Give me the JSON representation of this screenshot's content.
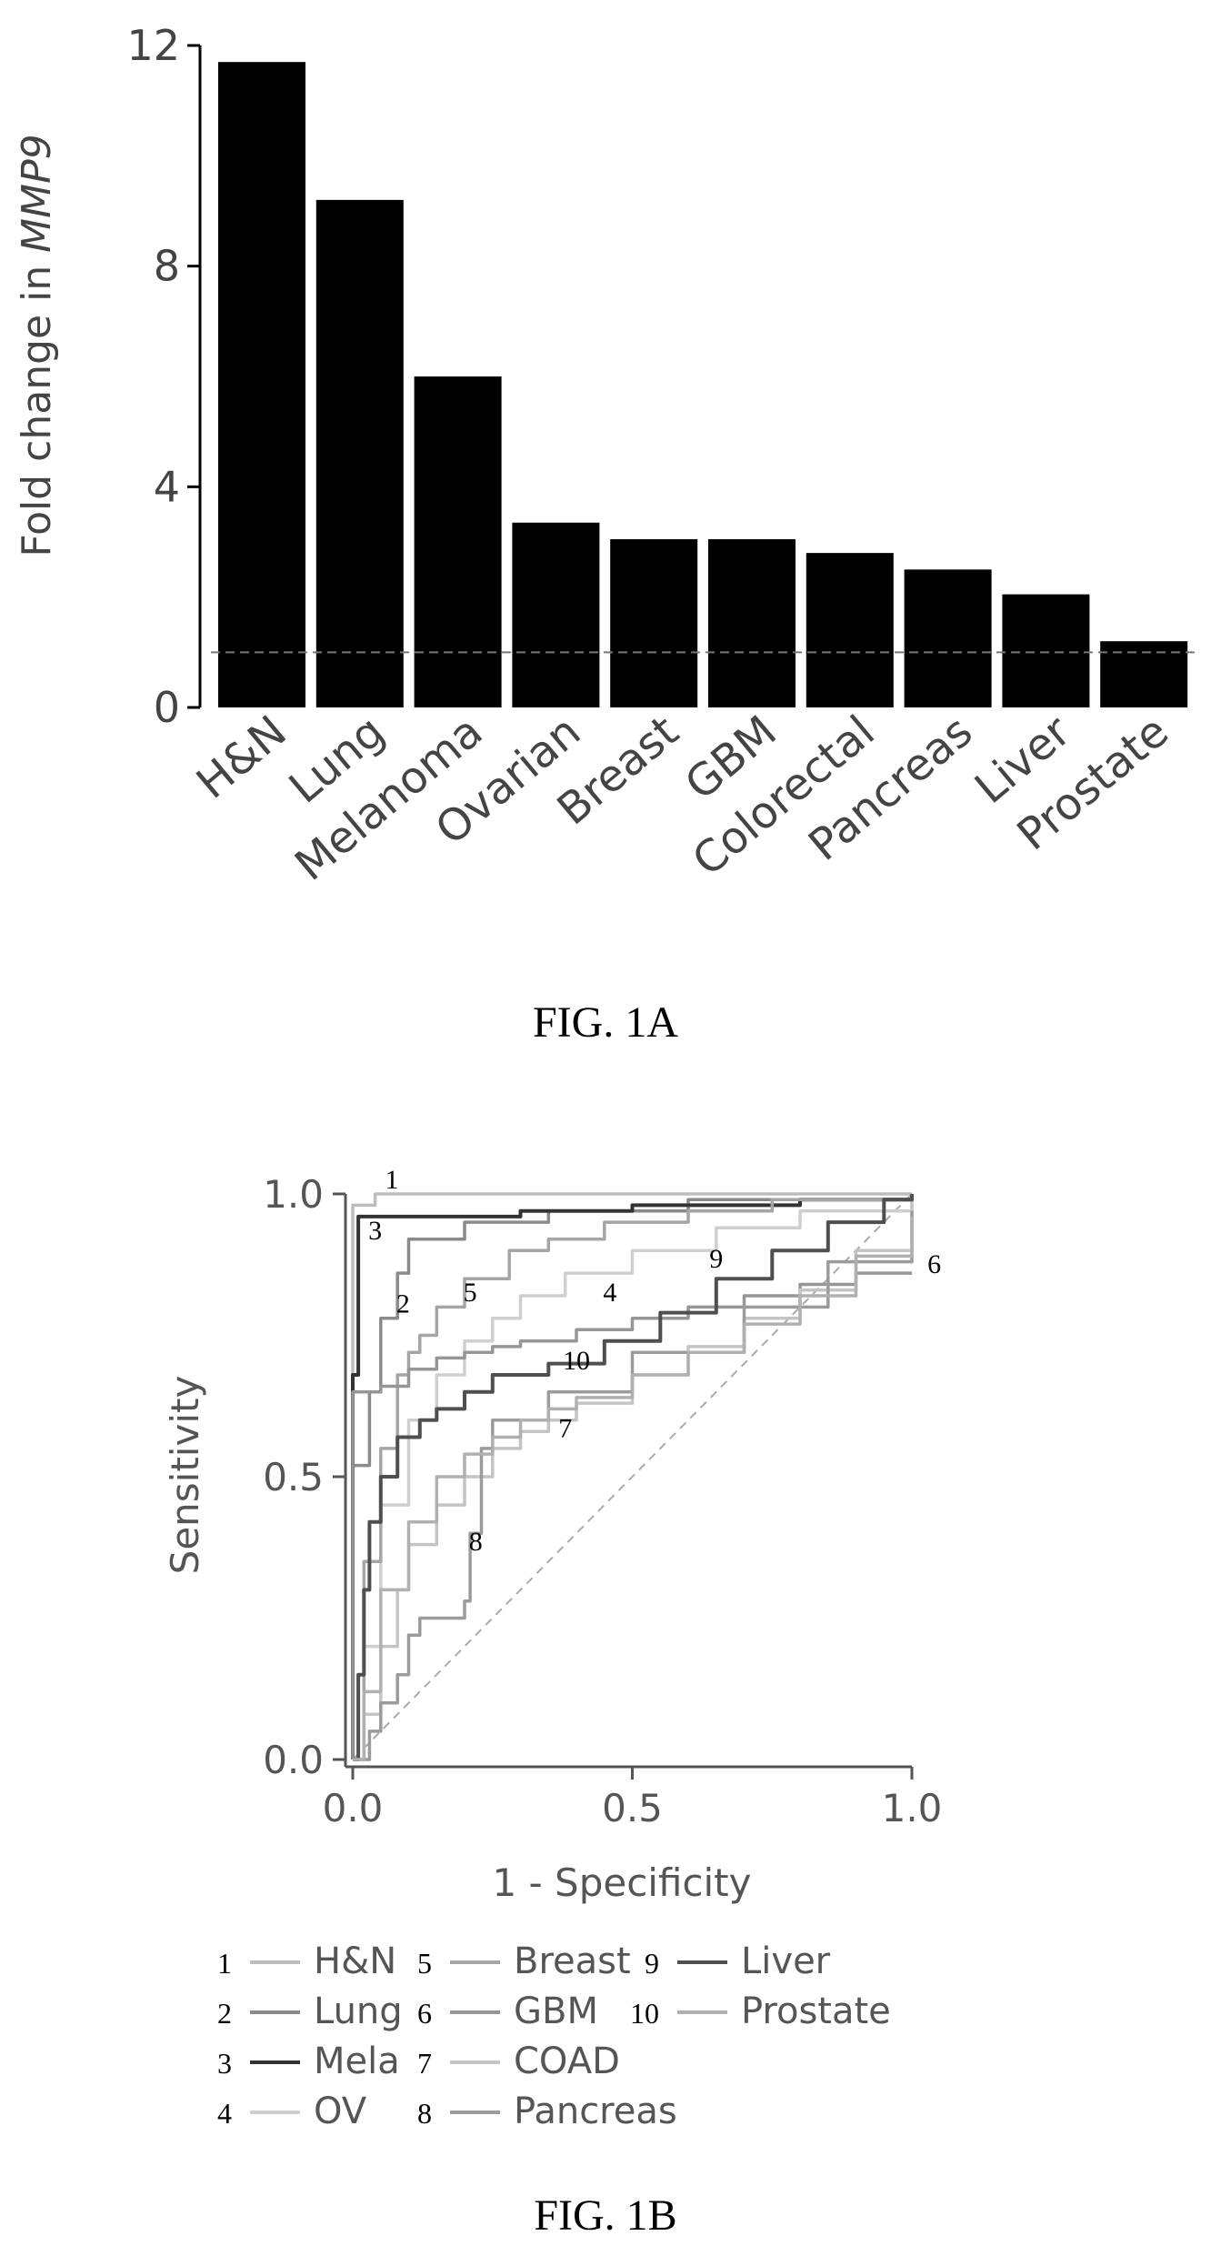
{
  "figure_a": {
    "caption": "FIG. 1A"
  },
  "figure_b": {
    "caption": "FIG. 1B"
  },
  "chart_data": [
    {
      "type": "bar",
      "title": "",
      "xlabel": "",
      "ylabel": "Fold change in MMP9",
      "ylabel_prefix": "Fold change in ",
      "ylabel_gene": "MMP9",
      "categories": [
        "H&N",
        "Lung",
        "Melanoma",
        "Ovarian",
        "Breast",
        "GBM",
        "Colorectal",
        "Pancreas",
        "Liver",
        "Prostate"
      ],
      "values": [
        11.7,
        9.2,
        6.0,
        3.35,
        3.05,
        3.05,
        2.8,
        2.5,
        2.05,
        1.2
      ],
      "yticks": [
        0,
        4,
        8,
        12
      ],
      "yticklabels": [
        "0",
        "4",
        "8",
        "12"
      ],
      "ylim": [
        0,
        12
      ],
      "reference_line": 1,
      "bar_color": "#000000"
    },
    {
      "type": "line",
      "title": "",
      "xlabel": "1 - Specificity",
      "ylabel": "Sensitivity",
      "xlim": [
        0,
        1
      ],
      "ylim": [
        0,
        1
      ],
      "xticks": [
        0.0,
        0.5,
        1.0
      ],
      "xticklabels": [
        "0.0",
        "0.5",
        "1.0"
      ],
      "yticks": [
        0.0,
        0.5,
        1.0
      ],
      "yticklabels": [
        "0.0",
        "0.5",
        "1.0"
      ],
      "diagonal": true,
      "series": [
        {
          "number": "1",
          "name": "H&N",
          "color": "#bdbdbd",
          "x": [
            0,
            0,
            0.04,
            0.2,
            0.5,
            0.8,
            1.0
          ],
          "y": [
            0,
            0.98,
            1.0,
            1.0,
            1.0,
            1.0,
            1.0
          ]
        },
        {
          "number": "2",
          "name": "Lung",
          "color": "#8a8a8a",
          "x": [
            0,
            0,
            0.03,
            0.03,
            0.05,
            0.05,
            0.08,
            0.1,
            0.2,
            0.35,
            0.6,
            1.0
          ],
          "y": [
            0,
            0.52,
            0.52,
            0.65,
            0.65,
            0.78,
            0.86,
            0.92,
            0.95,
            0.97,
            0.99,
            1.0
          ]
        },
        {
          "number": "3",
          "name": "Mela",
          "color": "#333333",
          "x": [
            0,
            0,
            0.01,
            0.01,
            0.25,
            0.3,
            0.5,
            0.8,
            1.0
          ],
          "y": [
            0,
            0.68,
            0.68,
            0.96,
            0.96,
            0.97,
            0.98,
            0.99,
            1.0
          ]
        },
        {
          "number": "4",
          "name": "OV",
          "color": "#cfcfcf",
          "x": [
            0,
            0.02,
            0.05,
            0.1,
            0.15,
            0.2,
            0.25,
            0.3,
            0.38,
            0.5,
            0.65,
            0.8,
            1.0
          ],
          "y": [
            0,
            0.2,
            0.45,
            0.6,
            0.68,
            0.74,
            0.78,
            0.82,
            0.86,
            0.9,
            0.94,
            0.97,
            1.0
          ]
        },
        {
          "number": "5",
          "name": "Breast",
          "color": "#a5a5a5",
          "x": [
            0,
            0.02,
            0.05,
            0.08,
            0.1,
            0.12,
            0.15,
            0.2,
            0.28,
            0.35,
            0.45,
            0.6,
            0.75,
            1.0
          ],
          "y": [
            0,
            0.35,
            0.55,
            0.68,
            0.72,
            0.75,
            0.8,
            0.85,
            0.9,
            0.92,
            0.95,
            0.97,
            0.99,
            1.0
          ]
        },
        {
          "number": "6",
          "name": "GBM",
          "color": "#969696",
          "x": [
            0,
            0,
            0.05,
            0.1,
            0.15,
            0.2,
            0.25,
            0.3,
            0.4,
            0.5,
            0.6,
            0.7,
            0.8,
            0.9,
            0.98,
            1.0
          ],
          "y": [
            0,
            0.65,
            0.66,
            0.69,
            0.71,
            0.72,
            0.73,
            0.74,
            0.76,
            0.78,
            0.8,
            0.82,
            0.84,
            0.86,
            0.86,
            0.86
          ]
        },
        {
          "number": "7",
          "name": "COAD",
          "color": "#c4c4c4",
          "x": [
            0,
            0.02,
            0.05,
            0.08,
            0.1,
            0.15,
            0.2,
            0.25,
            0.3,
            0.35,
            0.4,
            0.5,
            0.6,
            0.7,
            0.8,
            0.9,
            1.0
          ],
          "y": [
            0,
            0.08,
            0.2,
            0.3,
            0.38,
            0.45,
            0.5,
            0.55,
            0.58,
            0.6,
            0.63,
            0.68,
            0.73,
            0.78,
            0.83,
            0.9,
            1.0
          ]
        },
        {
          "number": "8",
          "name": "Pancreas",
          "color": "#9b9b9b",
          "x": [
            0,
            0.03,
            0.05,
            0.08,
            0.1,
            0.12,
            0.16,
            0.2,
            0.21,
            0.23,
            0.25,
            0.35,
            0.5,
            0.7,
            0.85,
            1.0
          ],
          "y": [
            0,
            0.05,
            0.1,
            0.15,
            0.22,
            0.25,
            0.25,
            0.28,
            0.4,
            0.55,
            0.6,
            0.65,
            0.72,
            0.8,
            0.88,
            0.97
          ]
        },
        {
          "number": "9",
          "name": "Liver",
          "color": "#4f4f4f",
          "x": [
            0,
            0.01,
            0.02,
            0.03,
            0.05,
            0.08,
            0.12,
            0.15,
            0.2,
            0.25,
            0.35,
            0.45,
            0.55,
            0.65,
            0.75,
            0.85,
            0.95,
            1.0
          ],
          "y": [
            0,
            0.15,
            0.3,
            0.42,
            0.5,
            0.57,
            0.6,
            0.62,
            0.65,
            0.68,
            0.7,
            0.74,
            0.79,
            0.85,
            0.9,
            0.95,
            0.99,
            1.0
          ]
        },
        {
          "number": "10",
          "name": "Prostate",
          "color": "#b0b0b0",
          "x": [
            0,
            0.02,
            0.05,
            0.1,
            0.15,
            0.2,
            0.25,
            0.3,
            0.35,
            0.4,
            0.5,
            0.6,
            0.7,
            0.8,
            0.9,
            1.0
          ],
          "y": [
            0,
            0.12,
            0.3,
            0.42,
            0.5,
            0.54,
            0.57,
            0.6,
            0.62,
            0.64,
            0.68,
            0.72,
            0.77,
            0.82,
            0.89,
            0.96
          ]
        }
      ],
      "curve_labels": [
        {
          "text": "1",
          "x": 0.07,
          "y": 1.01
        },
        {
          "text": "3",
          "x": 0.04,
          "y": 0.92
        },
        {
          "text": "2",
          "x": 0.09,
          "y": 0.79
        },
        {
          "text": "5",
          "x": 0.21,
          "y": 0.81
        },
        {
          "text": "4",
          "x": 0.46,
          "y": 0.81
        },
        {
          "text": "9",
          "x": 0.65,
          "y": 0.87
        },
        {
          "text": "6",
          "x": 1.04,
          "y": 0.86
        },
        {
          "text": "10",
          "x": 0.4,
          "y": 0.69
        },
        {
          "text": "7",
          "x": 0.38,
          "y": 0.57
        },
        {
          "text": "8",
          "x": 0.22,
          "y": 0.37
        }
      ],
      "legend_position": "bottom"
    }
  ]
}
